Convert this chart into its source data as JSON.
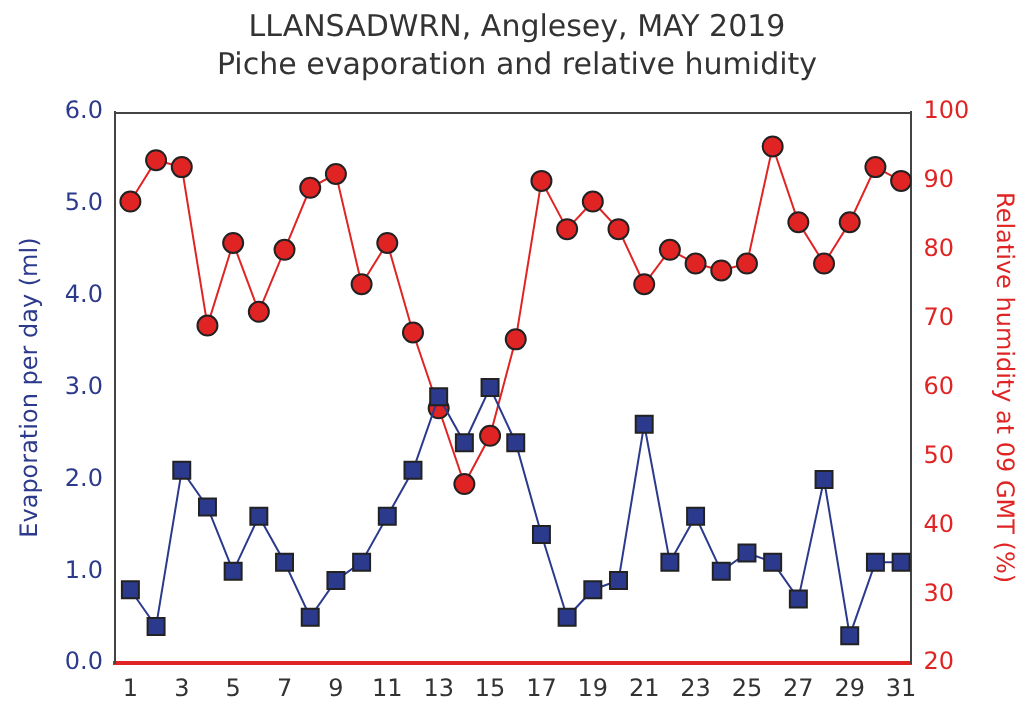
{
  "chart_data": {
    "type": "line",
    "title": "LLANSADWRN, Anglesey, MAY 2019",
    "subtitle": "Piche evaporation and relative humidity",
    "ylabel": "Evaporation per day (ml)",
    "y2label": "Relative humidity at 09 GMT (%)",
    "x": [
      1,
      2,
      3,
      4,
      5,
      6,
      7,
      8,
      9,
      10,
      11,
      12,
      13,
      14,
      15,
      16,
      17,
      18,
      19,
      20,
      21,
      22,
      23,
      24,
      25,
      26,
      27,
      28,
      29,
      30,
      31
    ],
    "xlim": [
      0.4,
      31.4
    ],
    "xticks": [
      1,
      3,
      5,
      7,
      9,
      11,
      13,
      15,
      17,
      19,
      21,
      23,
      25,
      27,
      29,
      31
    ],
    "ylim": [
      0,
      6
    ],
    "yticks": [
      {
        "value": 0,
        "label": "0.0"
      },
      {
        "value": 1,
        "label": "1.0"
      },
      {
        "value": 2,
        "label": "2.0"
      },
      {
        "value": 3,
        "label": "3.0"
      },
      {
        "value": 4,
        "label": "4.0"
      },
      {
        "value": 5,
        "label": "5.0"
      },
      {
        "value": 6,
        "label": "6.0"
      }
    ],
    "y2lim": [
      20,
      100
    ],
    "y2ticks": [
      20,
      30,
      40,
      50,
      60,
      70,
      80,
      90,
      100
    ],
    "grid": false,
    "legend": false,
    "series": [
      {
        "color": "#2b3a8c",
        "marker": "square",
        "values": [
          0.8,
          0.4,
          2.1,
          1.7,
          1.0,
          1.6,
          1.1,
          0.5,
          0.9,
          1.1,
          1.6,
          2.1,
          2.9,
          2.4,
          3.0,
          2.4,
          1.4,
          0.5,
          0.8,
          0.9,
          2.6,
          1.1,
          1.6,
          1.0,
          1.2,
          1.1,
          0.7,
          2.0,
          0.3,
          1.1,
          1.1
        ]
      },
      {
        "color": "#e02424",
        "marker": "circle",
        "axis": "y2",
        "values": [
          87,
          93,
          92,
          69,
          81,
          71,
          80,
          89,
          91,
          75,
          81,
          68,
          57,
          46,
          53,
          67,
          90,
          83,
          87,
          83,
          75,
          80,
          78,
          77,
          78,
          95,
          84,
          78,
          84,
          92,
          90
        ]
      }
    ]
  }
}
